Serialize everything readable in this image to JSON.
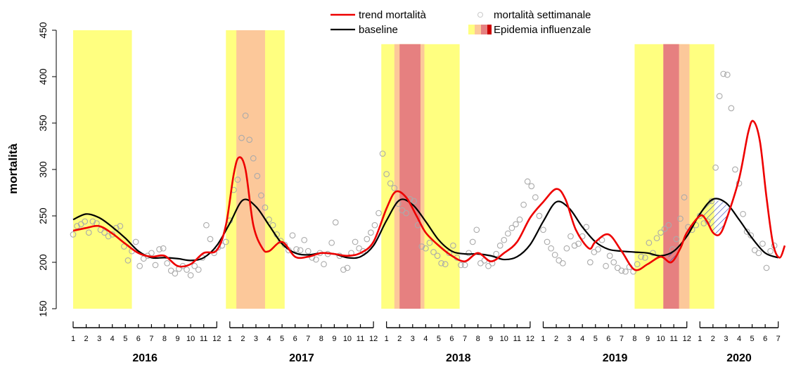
{
  "chart_data": {
    "type": "line",
    "ylabel": "mortalità",
    "ylim": [
      150,
      450
    ],
    "y_ticks": [
      "150",
      "200",
      "250",
      "300",
      "350",
      "400",
      "450"
    ],
    "x_unit": "months since Jan 2016",
    "xlim": [
      0,
      54.5
    ],
    "years": [
      {
        "label": "2016",
        "months": [
          "1",
          "2",
          "3",
          "4",
          "5",
          "6",
          "7",
          "8",
          "9",
          "10",
          "11",
          "12"
        ]
      },
      {
        "label": "2017",
        "months": [
          "1",
          "2",
          "3",
          "4",
          "5",
          "6",
          "7",
          "8",
          "9",
          "10",
          "11",
          "12"
        ]
      },
      {
        "label": "2018",
        "months": [
          "1",
          "2",
          "3",
          "4",
          "5",
          "6",
          "7",
          "8",
          "9",
          "10",
          "11",
          "12"
        ]
      },
      {
        "label": "2019",
        "months": [
          "1",
          "2",
          "3",
          "4",
          "5",
          "6",
          "7",
          "8",
          "9",
          "10",
          "11",
          "12"
        ]
      },
      {
        "label": "2020",
        "months": [
          "1",
          "2",
          "3",
          "4",
          "5",
          "6",
          "7"
        ]
      }
    ],
    "legend": {
      "trend": "trend mortalità",
      "baseline": "baseline",
      "weekly": "mortalità settimanale",
      "epidemic": "Epidemia influenzale"
    },
    "colors": {
      "trend": "#ee0000",
      "baseline": "#000000",
      "points": "#aaaaaa",
      "epi_low": "#ffff80",
      "epi_mid": "#fcc89a",
      "epi_high": "#e68080",
      "hatch": "#3344bb"
    },
    "epidemic_periods": [
      {
        "ylim": [
          150,
          450
        ],
        "bands": [
          {
            "from": 0,
            "to": 4.5,
            "level": "low"
          }
        ]
      },
      {
        "ylim": [
          150,
          450
        ],
        "bands": [
          {
            "from": 11.7,
            "to": 16.2,
            "level": "low"
          },
          {
            "from": 12.5,
            "to": 14.7,
            "level": "mid"
          }
        ]
      },
      {
        "ylim": [
          150,
          435
        ],
        "bands": [
          {
            "from": 23.6,
            "to": 29.6,
            "level": "low"
          },
          {
            "from": 24.6,
            "to": 26.9,
            "level": "mid"
          },
          {
            "from": 25.0,
            "to": 26.6,
            "level": "high"
          }
        ]
      },
      {
        "ylim": [
          150,
          435
        ],
        "bands": [
          {
            "from": 43.0,
            "to": 49.1,
            "level": "low"
          },
          {
            "from": 45.2,
            "to": 47.2,
            "level": "mid"
          },
          {
            "from": 45.2,
            "to": 46.4,
            "level": "high"
          }
        ]
      },
      {
        "ylim": [
          150,
          450
        ],
        "bands": [
          {
            "from": 55.8,
            "to": 57.2,
            "level": "low"
          },
          {
            "from": 57.0,
            "to": 59.6,
            "level": "mid"
          }
        ]
      }
    ],
    "baseline": [
      [
        0,
        246
      ],
      [
        1,
        252
      ],
      [
        2,
        248
      ],
      [
        3,
        238
      ],
      [
        4,
        226
      ],
      [
        5,
        212
      ],
      [
        6,
        205
      ],
      [
        7,
        205
      ],
      [
        8,
        204
      ],
      [
        9,
        202
      ],
      [
        10,
        205
      ],
      [
        11,
        218
      ],
      [
        12,
        242
      ],
      [
        13,
        267
      ],
      [
        14,
        260
      ],
      [
        15,
        240
      ],
      [
        16,
        220
      ],
      [
        17,
        210
      ],
      [
        18,
        208
      ],
      [
        19,
        210
      ],
      [
        20,
        209
      ],
      [
        21,
        205
      ],
      [
        22,
        206
      ],
      [
        23,
        218
      ],
      [
        24,
        245
      ],
      [
        25,
        267
      ],
      [
        26,
        262
      ],
      [
        27,
        244
      ],
      [
        28,
        224
      ],
      [
        29,
        212
      ],
      [
        30,
        209
      ],
      [
        31,
        209
      ],
      [
        32,
        207
      ],
      [
        33,
        203
      ],
      [
        34,
        206
      ],
      [
        35,
        219
      ],
      [
        36,
        244
      ],
      [
        37,
        265
      ],
      [
        38,
        258
      ],
      [
        39,
        238
      ],
      [
        40,
        222
      ],
      [
        41,
        214
      ],
      [
        42,
        212
      ],
      [
        43,
        211
      ],
      [
        44,
        210
      ],
      [
        45,
        207
      ],
      [
        46,
        212
      ],
      [
        47,
        228
      ],
      [
        48,
        252
      ],
      [
        49,
        268
      ],
      [
        50,
        264
      ],
      [
        51,
        246
      ],
      [
        52,
        226
      ],
      [
        53,
        210
      ],
      [
        54,
        205
      ]
    ],
    "trend": [
      [
        0,
        234
      ],
      [
        1,
        237
      ],
      [
        2,
        239
      ],
      [
        3,
        231
      ],
      [
        4,
        220
      ],
      [
        5,
        210
      ],
      [
        6,
        206
      ],
      [
        7,
        207
      ],
      [
        8,
        196
      ],
      [
        9,
        198
      ],
      [
        10,
        210
      ],
      [
        11,
        213
      ],
      [
        11.7,
        240
      ],
      [
        12.3,
        295
      ],
      [
        12.7,
        313
      ],
      [
        13.2,
        300
      ],
      [
        13.8,
        240
      ],
      [
        14.5,
        215
      ],
      [
        15,
        212
      ],
      [
        16,
        222
      ],
      [
        17,
        206
      ],
      [
        18,
        206
      ],
      [
        19,
        210
      ],
      [
        20,
        209
      ],
      [
        21,
        207
      ],
      [
        22,
        210
      ],
      [
        23,
        222
      ],
      [
        24,
        258
      ],
      [
        24.7,
        276
      ],
      [
        25.5,
        270
      ],
      [
        26.3,
        250
      ],
      [
        27,
        232
      ],
      [
        28,
        218
      ],
      [
        29,
        207
      ],
      [
        30,
        201
      ],
      [
        31,
        210
      ],
      [
        32,
        201
      ],
      [
        33,
        210
      ],
      [
        34,
        222
      ],
      [
        35,
        248
      ],
      [
        36,
        265
      ],
      [
        37,
        279
      ],
      [
        37.7,
        268
      ],
      [
        38.5,
        235
      ],
      [
        39.5,
        215
      ],
      [
        40,
        222
      ],
      [
        41,
        230
      ],
      [
        42,
        212
      ],
      [
        43,
        192
      ],
      [
        44,
        198
      ],
      [
        45,
        206
      ],
      [
        45.8,
        200
      ],
      [
        46.5,
        215
      ],
      [
        47,
        232
      ],
      [
        48,
        250
      ],
      [
        48.5,
        245
      ],
      [
        49,
        232
      ],
      [
        49.5,
        230
      ],
      [
        50,
        245
      ],
      [
        51,
        290
      ],
      [
        51.7,
        340
      ],
      [
        52.1,
        352
      ],
      [
        52.6,
        330
      ],
      [
        53.1,
        270
      ],
      [
        53.6,
        220
      ],
      [
        54.1,
        205
      ],
      [
        54.5,
        218
      ]
    ],
    "weekly": [
      [
        0,
        230
      ],
      [
        0.3,
        239
      ],
      [
        0.6,
        241
      ],
      [
        0.9,
        244
      ],
      [
        1.2,
        232
      ],
      [
        1.5,
        244
      ],
      [
        1.8,
        242
      ],
      [
        2.1,
        235
      ],
      [
        2.4,
        232
      ],
      [
        2.7,
        228
      ],
      [
        3.0,
        230
      ],
      [
        3.3,
        237
      ],
      [
        3.6,
        239
      ],
      [
        3.9,
        217
      ],
      [
        4.2,
        202
      ],
      [
        4.5,
        212
      ],
      [
        4.8,
        222
      ],
      [
        5.1,
        196
      ],
      [
        5.4,
        204
      ],
      [
        5.7,
        207
      ],
      [
        6.0,
        210
      ],
      [
        6.3,
        197
      ],
      [
        6.6,
        214
      ],
      [
        6.9,
        215
      ],
      [
        7.2,
        199
      ],
      [
        7.5,
        191
      ],
      [
        7.8,
        188
      ],
      [
        8.1,
        193
      ],
      [
        8.4,
        196
      ],
      [
        8.7,
        192
      ],
      [
        9.0,
        186
      ],
      [
        9.3,
        196
      ],
      [
        9.6,
        192
      ],
      [
        9.9,
        205
      ],
      [
        10.2,
        240
      ],
      [
        10.5,
        225
      ],
      [
        10.8,
        210
      ],
      [
        11.1,
        216
      ],
      [
        11.4,
        218
      ],
      [
        11.7,
        222
      ],
      [
        12.0,
        245
      ],
      [
        12.3,
        278
      ],
      [
        12.6,
        289
      ],
      [
        12.9,
        334
      ],
      [
        13.2,
        358
      ],
      [
        13.5,
        332
      ],
      [
        13.8,
        312
      ],
      [
        14.1,
        293
      ],
      [
        14.4,
        272
      ],
      [
        14.7,
        259
      ],
      [
        15.0,
        246
      ],
      [
        15.3,
        240
      ],
      [
        15.6,
        230
      ],
      [
        15.9,
        223
      ],
      [
        16.2,
        219
      ],
      [
        16.5,
        213
      ],
      [
        16.8,
        229
      ],
      [
        17.1,
        214
      ],
      [
        17.4,
        213
      ],
      [
        17.7,
        224
      ],
      [
        18.0,
        212
      ],
      [
        18.3,
        205
      ],
      [
        18.6,
        203
      ],
      [
        18.9,
        210
      ],
      [
        19.2,
        198
      ],
      [
        19.5,
        209
      ],
      [
        19.8,
        221
      ],
      [
        20.1,
        243
      ],
      [
        20.4,
        207
      ],
      [
        20.7,
        192
      ],
      [
        21.0,
        194
      ],
      [
        21.3,
        210
      ],
      [
        21.6,
        222
      ],
      [
        21.9,
        215
      ],
      [
        22.2,
        212
      ],
      [
        22.5,
        225
      ],
      [
        22.8,
        232
      ],
      [
        23.1,
        240
      ],
      [
        23.4,
        253
      ],
      [
        23.7,
        317
      ],
      [
        24.0,
        295
      ],
      [
        24.3,
        285
      ],
      [
        24.6,
        280
      ],
      [
        24.9,
        263
      ],
      [
        25.2,
        256
      ],
      [
        25.5,
        253
      ],
      [
        25.8,
        268
      ],
      [
        26.1,
        266
      ],
      [
        26.4,
        240
      ],
      [
        26.7,
        217
      ],
      [
        27.0,
        215
      ],
      [
        27.3,
        221
      ],
      [
        27.6,
        211
      ],
      [
        27.9,
        207
      ],
      [
        28.2,
        199
      ],
      [
        28.5,
        198
      ],
      [
        28.8,
        210
      ],
      [
        29.1,
        218
      ],
      [
        29.4,
        205
      ],
      [
        29.7,
        197
      ],
      [
        30.0,
        197
      ],
      [
        30.3,
        210
      ],
      [
        30.6,
        222
      ],
      [
        30.9,
        235
      ],
      [
        31.2,
        199
      ],
      [
        31.5,
        202
      ],
      [
        31.8,
        196
      ],
      [
        32.1,
        199
      ],
      [
        32.4,
        209
      ],
      [
        32.7,
        218
      ],
      [
        33.0,
        224
      ],
      [
        33.3,
        231
      ],
      [
        33.6,
        237
      ],
      [
        33.9,
        241
      ],
      [
        34.2,
        246
      ],
      [
        34.5,
        262
      ],
      [
        34.8,
        287
      ],
      [
        35.1,
        282
      ],
      [
        35.4,
        270
      ],
      [
        35.7,
        250
      ],
      [
        36.0,
        235
      ],
      [
        36.3,
        222
      ],
      [
        36.6,
        215
      ],
      [
        36.9,
        208
      ],
      [
        37.2,
        202
      ],
      [
        37.5,
        199
      ],
      [
        37.8,
        215
      ],
      [
        38.1,
        228
      ],
      [
        38.4,
        218
      ],
      [
        38.7,
        220
      ],
      [
        39.0,
        228
      ],
      [
        39.3,
        238
      ],
      [
        39.6,
        200
      ],
      [
        39.9,
        211
      ],
      [
        40.2,
        214
      ],
      [
        40.5,
        224
      ],
      [
        40.8,
        196
      ],
      [
        41.1,
        207
      ],
      [
        41.4,
        200
      ],
      [
        41.7,
        194
      ],
      [
        42.0,
        191
      ],
      [
        42.3,
        190
      ],
      [
        42.6,
        195
      ],
      [
        42.9,
        190
      ],
      [
        43.2,
        198
      ],
      [
        43.5,
        206
      ],
      [
        43.8,
        205
      ],
      [
        44.1,
        221
      ],
      [
        44.4,
        210
      ],
      [
        44.7,
        226
      ],
      [
        45.0,
        232
      ],
      [
        45.3,
        236
      ],
      [
        45.6,
        240
      ],
      [
        45.9,
        214
      ],
      [
        46.2,
        225
      ],
      [
        46.5,
        247
      ],
      [
        46.8,
        270
      ],
      [
        47.1,
        238
      ],
      [
        47.4,
        235
      ],
      [
        47.7,
        240
      ],
      [
        48.0,
        250
      ],
      [
        48.3,
        242
      ],
      [
        48.6,
        244
      ],
      [
        48.9,
        266
      ],
      [
        49.2,
        302
      ],
      [
        49.5,
        379
      ],
      [
        49.8,
        403
      ],
      [
        50.1,
        402
      ],
      [
        50.4,
        366
      ],
      [
        50.7,
        300
      ],
      [
        51.0,
        285
      ],
      [
        51.3,
        252
      ],
      [
        51.6,
        233
      ],
      [
        51.9,
        229
      ],
      [
        52.2,
        213
      ],
      [
        52.5,
        210
      ],
      [
        52.8,
        220
      ],
      [
        53.1,
        194
      ],
      [
        53.4,
        212
      ],
      [
        53.7,
        218
      ]
    ]
  }
}
